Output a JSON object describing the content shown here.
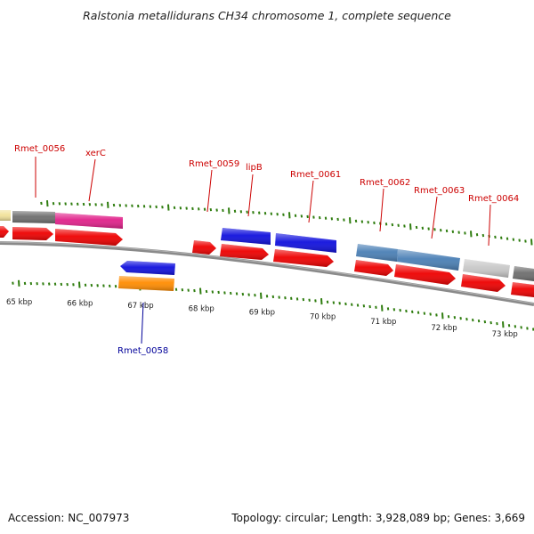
{
  "title": "Ralstonia metallidurans CH34 chromosome 1, complete sequence",
  "footer": {
    "accession": "Accession: NC_007973",
    "summary": "Topology: circular; Length: 3,928,089 bp; Genes: 3,669"
  },
  "colors": {
    "backbone": "#8a8a8a",
    "tick": "#2f7d0f",
    "forward_label": "#cc0000",
    "reverse_label": "#000099"
  },
  "kbp_marks": [
    {
      "kbp": 65,
      "label": "65 kbp"
    },
    {
      "kbp": 66,
      "label": "66 kbp"
    },
    {
      "kbp": 67,
      "label": "67 kbp"
    },
    {
      "kbp": 68,
      "label": "68 kbp"
    },
    {
      "kbp": 69,
      "label": "69 kbp"
    },
    {
      "kbp": 70,
      "label": "70 kbp"
    },
    {
      "kbp": 71,
      "label": "71 kbp"
    },
    {
      "kbp": 72,
      "label": "72 kbp"
    },
    {
      "kbp": 73,
      "label": "73 kbp"
    }
  ],
  "gene_labels": [
    {
      "name": "Rmet_0056",
      "strand": "forward"
    },
    {
      "name": "xerC",
      "strand": "forward"
    },
    {
      "name": "Rmet_0059",
      "strand": "forward"
    },
    {
      "name": "lipB",
      "strand": "forward"
    },
    {
      "name": "Rmet_0061",
      "strand": "forward"
    },
    {
      "name": "Rmet_0062",
      "strand": "forward"
    },
    {
      "name": "Rmet_0063",
      "strand": "forward"
    },
    {
      "name": "Rmet_0064",
      "strand": "forward"
    },
    {
      "name": "Rmet_0058",
      "strand": "reverse"
    }
  ],
  "features": [
    {
      "gene": "",
      "track": "forward-annot",
      "color": "#f2e29a"
    },
    {
      "gene": "Rmet_0056",
      "track": "forward-annot",
      "color": "#6e6e6e"
    },
    {
      "gene": "xerC",
      "track": "forward-annot",
      "color": "#e0218a"
    },
    {
      "gene": "lipB",
      "track": "forward-annot",
      "color": "#1010dd"
    },
    {
      "gene": "Rmet_0061",
      "track": "forward-annot",
      "color": "#1010dd"
    },
    {
      "gene": "Rmet_0062",
      "track": "forward-annot",
      "color": "#4a7fb5"
    },
    {
      "gene": "Rmet_0063",
      "track": "forward-annot",
      "color": "#4a7fb5"
    },
    {
      "gene": "Rmet_0064",
      "track": "forward-annot",
      "color": "#c8c8c8"
    },
    {
      "gene": "",
      "track": "forward-annot",
      "color": "#6e6e6e"
    },
    {
      "gene": "",
      "track": "forward-cds",
      "color": "#ee0000"
    },
    {
      "gene": "Rmet_0056",
      "track": "forward-cds",
      "color": "#ee0000"
    },
    {
      "gene": "xerC",
      "track": "forward-cds",
      "color": "#ee0000"
    },
    {
      "gene": "Rmet_0059",
      "track": "forward-cds",
      "color": "#ee0000"
    },
    {
      "gene": "lipB",
      "track": "forward-cds",
      "color": "#ee0000"
    },
    {
      "gene": "Rmet_0061",
      "track": "forward-cds",
      "color": "#ee0000"
    },
    {
      "gene": "Rmet_0062",
      "track": "forward-cds",
      "color": "#ee0000"
    },
    {
      "gene": "Rmet_0063",
      "track": "forward-cds",
      "color": "#ee0000"
    },
    {
      "gene": "Rmet_0064",
      "track": "forward-cds",
      "color": "#ee0000"
    },
    {
      "gene": "",
      "track": "forward-cds",
      "color": "#ee0000"
    },
    {
      "gene": "Rmet_0058",
      "track": "reverse-annot",
      "color": "#1010dd"
    },
    {
      "gene": "Rmet_0058",
      "track": "reverse-cds",
      "color": "#ff8c00"
    }
  ]
}
